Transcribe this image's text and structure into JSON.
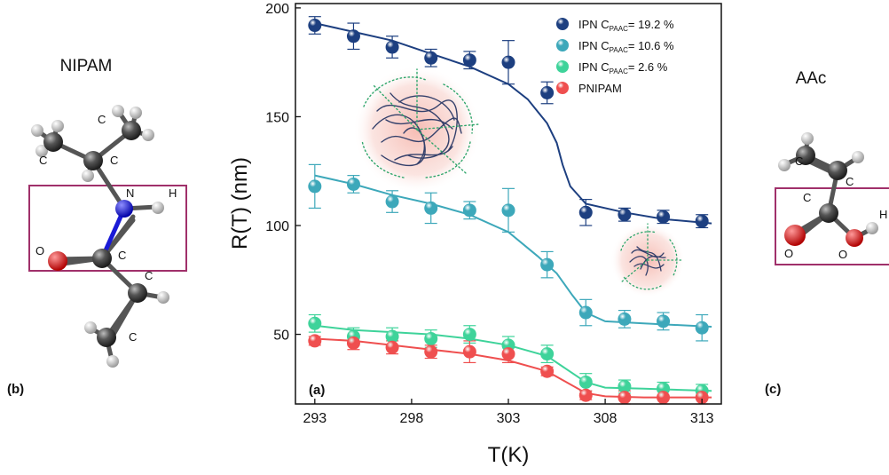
{
  "chart_data": {
    "type": "scatter",
    "panel_label": "(a)",
    "xlabel": "T(K)",
    "ylabel": "R(T) (nm)",
    "xlim": [
      292,
      314
    ],
    "ylim": [
      18,
      202
    ],
    "x_ticks": [
      293,
      298,
      303,
      308,
      313
    ],
    "y_ticks": [
      50,
      100,
      150,
      200
    ],
    "legend_position": "top-right",
    "series": [
      {
        "name": "IPN C",
        "name_sub": "PAAC",
        "name_tail": "= 19.2 %",
        "color": "#1d3f80",
        "x": [
          293,
          295,
          297,
          299,
          301,
          303,
          305,
          307,
          309,
          311,
          313
        ],
        "y": [
          192,
          187,
          182,
          177,
          176,
          175,
          161,
          106,
          105,
          104,
          102
        ],
        "err": [
          4,
          6,
          5,
          4,
          4,
          10,
          5,
          6,
          3,
          3,
          3
        ],
        "fit": [
          [
            293,
            193
          ],
          [
            295,
            189
          ],
          [
            297,
            185
          ],
          [
            299,
            179
          ],
          [
            301,
            173
          ],
          [
            303,
            165
          ],
          [
            304,
            158
          ],
          [
            305,
            147
          ],
          [
            305.5,
            138
          ],
          [
            305.8,
            128
          ],
          [
            306.2,
            118
          ],
          [
            307,
            110
          ],
          [
            309,
            106
          ],
          [
            311,
            103
          ],
          [
            313.5,
            101
          ]
        ]
      },
      {
        "name": "IPN C",
        "name_sub": "PAAC",
        "name_tail": "= 10.6 %",
        "color": "#3da8ba",
        "x": [
          293,
          295,
          297,
          299,
          301,
          303,
          305,
          307,
          309,
          311,
          313
        ],
        "y": [
          118,
          119,
          111,
          108,
          107,
          107,
          82,
          60,
          57,
          56,
          53
        ],
        "err": [
          10,
          4,
          5,
          7,
          4,
          10,
          6,
          6,
          4,
          4,
          6
        ],
        "fit": [
          [
            293,
            123
          ],
          [
            295,
            119
          ],
          [
            297,
            114
          ],
          [
            299,
            110
          ],
          [
            301,
            105
          ],
          [
            303,
            97
          ],
          [
            304.5,
            86
          ],
          [
            305.5,
            78
          ],
          [
            306.3,
            68
          ],
          [
            307,
            60
          ],
          [
            308,
            56
          ],
          [
            310,
            55
          ],
          [
            313.5,
            53.5
          ]
        ]
      },
      {
        "name": "IPN C",
        "name_sub": "PAAC",
        "name_tail": "= 2.6 %",
        "color": "#3ed39a",
        "x": [
          293,
          295,
          297,
          299,
          301,
          303,
          305,
          307,
          309,
          311,
          313
        ],
        "y": [
          55,
          49,
          49,
          48,
          50,
          45,
          41,
          28,
          26,
          25,
          24
        ],
        "err": [
          4,
          4,
          4,
          4,
          4,
          4,
          4,
          4,
          3,
          3,
          3
        ],
        "fit": [
          [
            293,
            54
          ],
          [
            295,
            52
          ],
          [
            297,
            51
          ],
          [
            299,
            50
          ],
          [
            301,
            48
          ],
          [
            303,
            45
          ],
          [
            305,
            40
          ],
          [
            306,
            34
          ],
          [
            307,
            28
          ],
          [
            308,
            25.5
          ],
          [
            310,
            25
          ],
          [
            313.5,
            24
          ]
        ]
      },
      {
        "name": "PNIPAM",
        "name_sub": "",
        "name_tail": "",
        "color": "#ef4f4f",
        "x": [
          293,
          295,
          297,
          299,
          301,
          303,
          305,
          307,
          309,
          311,
          313
        ],
        "y": [
          47,
          46,
          44,
          42,
          42,
          41,
          33,
          22,
          21,
          21,
          21
        ],
        "err": [
          2,
          3,
          3,
          3,
          5,
          4,
          2,
          2,
          3,
          3,
          3
        ],
        "fit": [
          [
            293,
            48
          ],
          [
            295,
            47
          ],
          [
            297,
            45
          ],
          [
            299,
            43
          ],
          [
            301,
            41
          ],
          [
            303,
            38
          ],
          [
            305,
            33
          ],
          [
            306,
            28
          ],
          [
            307,
            23
          ],
          [
            308,
            21.5
          ],
          [
            310,
            21
          ],
          [
            313.5,
            21
          ]
        ]
      }
    ]
  },
  "molecules": {
    "left": {
      "title": "NIPAM",
      "panel_label": "(b)",
      "atom_labels": [
        "C",
        "C",
        "C",
        "N",
        "H",
        "O",
        "C",
        "C",
        "C"
      ]
    },
    "right": {
      "title": "AAc",
      "panel_label": "(c)",
      "atom_labels": [
        "C",
        "C",
        "C",
        "H",
        "O",
        "O"
      ]
    },
    "colors": {
      "carbon": "#3b3b3b",
      "hydrogen": "#c8c8c8",
      "nitrogen": "#1a1ad6",
      "oxygen": "#e01010",
      "box": "#a0306a"
    }
  }
}
